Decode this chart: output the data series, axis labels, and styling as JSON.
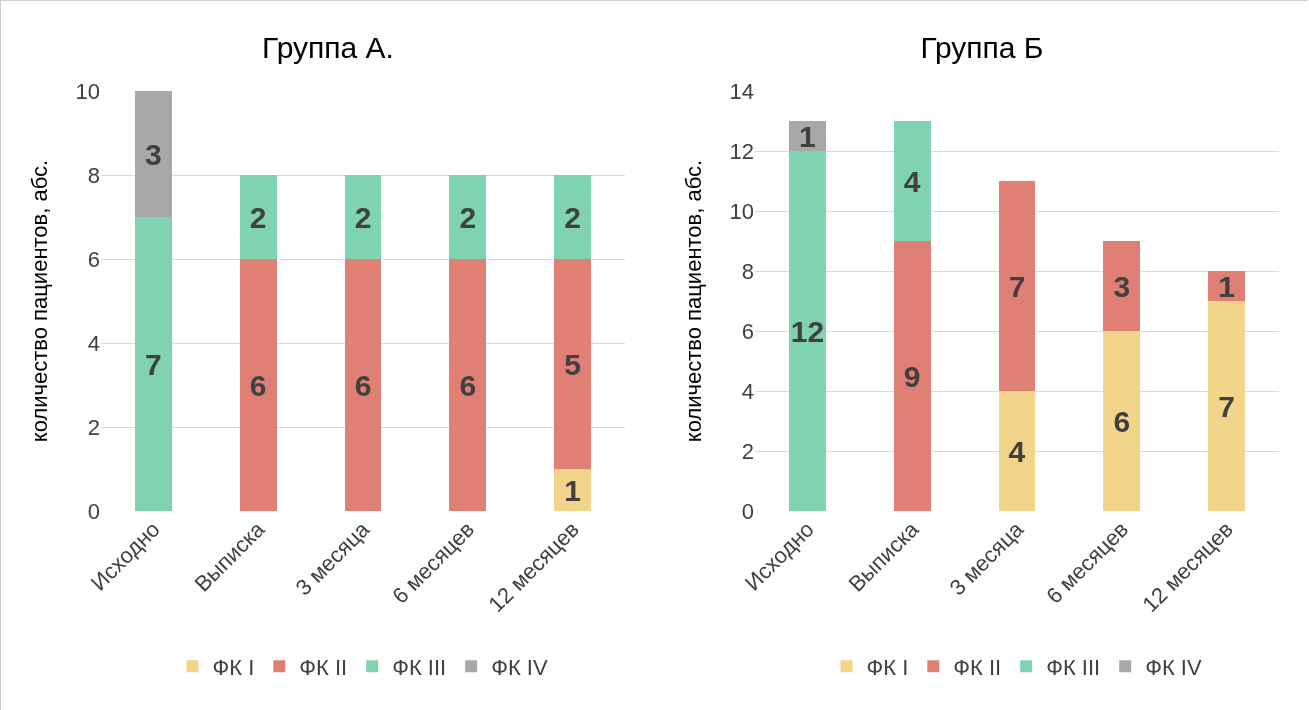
{
  "chart_data": [
    {
      "type": "bar",
      "title": "Группа А.",
      "ylabel": "количество пациентов, абс.",
      "categories": [
        "Исходно",
        "Выписка",
        "3 месяца",
        "6 месяцев",
        "12 месяцев"
      ],
      "stacked": true,
      "data_labels": true,
      "grid": "y",
      "legend": "bottom",
      "ylim": [
        0,
        10
      ],
      "yticks": [
        0,
        2,
        4,
        6,
        8,
        10
      ],
      "series": [
        {
          "name": "ФК I",
          "color": "#f2d58a",
          "values": [
            null,
            null,
            null,
            null,
            1
          ]
        },
        {
          "name": "ФК II",
          "color": "#e07f74",
          "values": [
            null,
            6,
            6,
            6,
            5
          ]
        },
        {
          "name": "ФК III",
          "color": "#7fd3b0",
          "values": [
            7,
            2,
            2,
            2,
            2
          ]
        },
        {
          "name": "ФК IV",
          "color": "#a8a8a8",
          "values": [
            3,
            null,
            null,
            null,
            null
          ]
        }
      ]
    },
    {
      "type": "bar",
      "title": "Группа Б",
      "ylabel": "количество пациентов, абс.",
      "categories": [
        "Исходно",
        "Выписка",
        "3 месяца",
        "6 месяцев",
        "12 месяцев"
      ],
      "stacked": true,
      "data_labels": true,
      "grid": "y",
      "legend": "bottom",
      "ylim": [
        0,
        14
      ],
      "yticks": [
        0,
        2,
        4,
        6,
        8,
        10,
        12,
        14
      ],
      "series": [
        {
          "name": "ФК I",
          "color": "#f2d58a",
          "values": [
            null,
            null,
            4,
            6,
            7
          ]
        },
        {
          "name": "ФК II",
          "color": "#e07f74",
          "values": [
            null,
            9,
            7,
            3,
            1
          ]
        },
        {
          "name": "ФК III",
          "color": "#7fd3b0",
          "values": [
            12,
            4,
            null,
            null,
            null
          ]
        },
        {
          "name": "ФК IV",
          "color": "#a8a8a8",
          "values": [
            1,
            null,
            null,
            null,
            null
          ]
        }
      ]
    }
  ]
}
